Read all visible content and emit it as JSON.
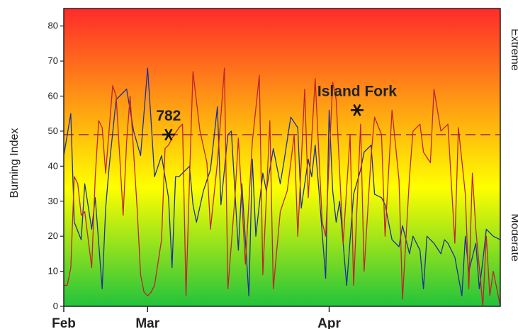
{
  "chart_data": {
    "type": "line",
    "ylabel": "Burning Index",
    "ylim": [
      0,
      85
    ],
    "yticks": [
      0,
      10,
      20,
      30,
      40,
      50,
      60,
      70,
      80
    ],
    "xlim": [
      0,
      125
    ],
    "xticks": [
      {
        "label": "Feb",
        "x": 0
      },
      {
        "label": "Mar",
        "x": 24
      },
      {
        "label": "Apr",
        "x": 76
      }
    ],
    "right_labels": [
      "Extreme",
      "Moderate"
    ],
    "grid": false,
    "background": {
      "top_color": "#ff2a2a",
      "mid_color": "#ffff00",
      "bottom_color": "#22c33c"
    },
    "threshold": {
      "value": 49,
      "color": "#b4282a"
    },
    "annotations": [
      {
        "text": "782",
        "x": 30,
        "y": 49
      },
      {
        "text": "Island Fork",
        "x": 84,
        "y": 56
      }
    ],
    "series": [
      {
        "color": "#1f2f9a",
        "x": [
          0,
          2,
          3,
          5,
          6,
          8,
          9,
          11,
          12,
          13,
          15,
          16,
          18,
          20,
          22,
          24,
          25,
          26,
          28,
          30,
          31,
          32,
          33,
          35,
          36,
          37,
          38,
          40,
          42,
          44,
          45,
          47,
          48,
          50,
          51,
          53,
          54,
          55,
          57,
          58,
          60,
          62,
          63,
          65,
          67,
          68,
          70,
          71,
          72,
          73,
          75,
          76,
          77,
          78,
          79,
          81,
          83,
          85,
          86,
          88,
          89,
          91,
          92,
          94,
          96,
          97,
          99,
          100,
          102,
          103,
          104,
          106,
          108,
          109,
          110,
          112,
          114,
          115,
          116,
          118,
          119,
          120,
          121,
          123,
          125
        ],
        "y": [
          43,
          55,
          24,
          19,
          35,
          22,
          31,
          5,
          28,
          40,
          59,
          60,
          62,
          50,
          43,
          68,
          53,
          37,
          43,
          31,
          11,
          37,
          37,
          39,
          40,
          29,
          24,
          33,
          39,
          57,
          29,
          49,
          50,
          16,
          35,
          3,
          42,
          20,
          38,
          33,
          45,
          35,
          41,
          54,
          51,
          28,
          42,
          37,
          46,
          34,
          8,
          56,
          33,
          24,
          30,
          6,
          32,
          39,
          44,
          46,
          32,
          31,
          29,
          19,
          17,
          23,
          15,
          20,
          16,
          5,
          20,
          18,
          15,
          19,
          18,
          14,
          3,
          20,
          10,
          18,
          5,
          13,
          22,
          20,
          19
        ]
      },
      {
        "color": "#c0242b",
        "x": [
          0,
          1,
          2,
          3,
          4,
          5,
          6,
          8,
          9,
          10,
          11,
          12,
          14,
          15,
          17,
          18,
          19,
          21,
          22,
          23,
          24,
          25,
          26,
          28,
          29,
          30,
          31,
          33,
          34,
          35,
          36,
          37,
          39,
          41,
          42,
          44,
          46,
          47,
          49,
          50,
          52,
          54,
          56,
          57,
          59,
          60,
          62,
          64,
          66,
          67,
          69,
          70,
          72,
          74,
          75,
          77,
          78,
          80,
          82,
          83,
          85,
          86,
          88,
          89,
          91,
          92,
          94,
          96,
          97,
          99,
          100,
          102,
          103,
          105,
          106,
          108,
          110,
          112,
          113,
          115,
          116,
          117,
          118,
          120,
          121,
          122,
          123,
          124,
          125
        ],
        "y": [
          6,
          6,
          11,
          37,
          35,
          26,
          27,
          11,
          37,
          53,
          51,
          38,
          63,
          60,
          26,
          47,
          60,
          28,
          9,
          4,
          3,
          4,
          6,
          19,
          45,
          46,
          48,
          51,
          52,
          3,
          36,
          67,
          50,
          41,
          22,
          41,
          68,
          5,
          31,
          48,
          12,
          47,
          66,
          9,
          53,
          5,
          27,
          33,
          49,
          20,
          62,
          31,
          65,
          24,
          20,
          64,
          59,
          18,
          49,
          6,
          52,
          10,
          43,
          54,
          49,
          20,
          56,
          36,
          2,
          37,
          50,
          52,
          44,
          41,
          62,
          50,
          52,
          18,
          51,
          32,
          5,
          38,
          22,
          0,
          20,
          3,
          10,
          5,
          0
        ]
      }
    ]
  }
}
